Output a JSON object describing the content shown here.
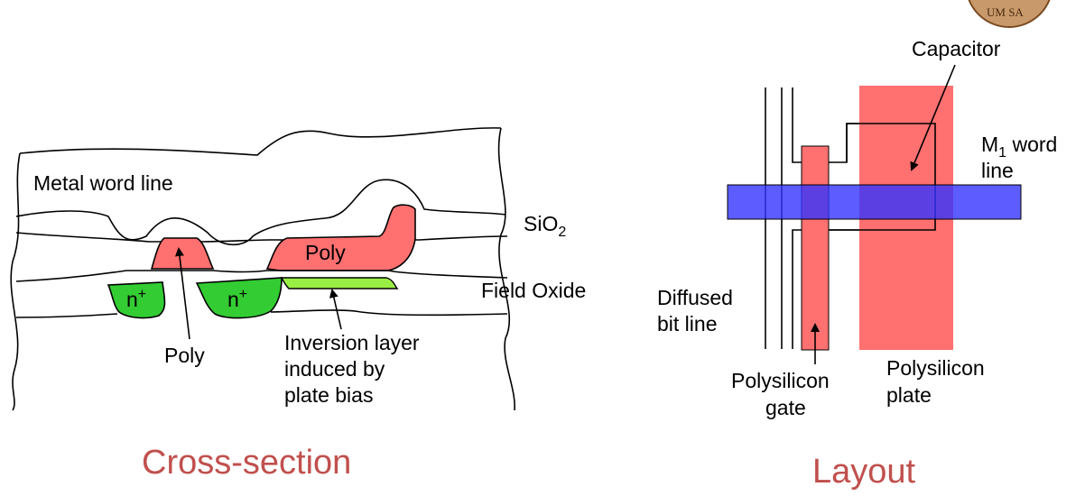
{
  "colors": {
    "poly": "#ff7070",
    "n_plus": "#33cc33",
    "inversion": "#99ee44",
    "metal_word_line": "#3333ff",
    "title": "#c0504d",
    "seal": "#c8996a"
  },
  "cross_section": {
    "title": "Cross-section",
    "labels": {
      "metal_word_line": "Metal word line",
      "sio2_main": "SiO",
      "sio2_sub": "2",
      "poly_right": "Poly",
      "poly_bottom": "Poly",
      "field_oxide": "Field Oxide",
      "n_plus_main": "n",
      "n_plus_sup": "+",
      "inversion_line1": "Inversion layer",
      "inversion_line2": "induced by",
      "inversion_line3": "plate bias"
    }
  },
  "layout": {
    "title": "Layout",
    "labels": {
      "capacitor": "Capacitor",
      "m1_main": "M",
      "m1_sub": "1",
      "m1_word": " word",
      "m1_line2": "line",
      "diffused_line1": "Diffused",
      "diffused_line2": "bit line",
      "poly_gate_line1": "Polysilicon",
      "poly_gate_line2": "gate",
      "poly_plate_line1": "Polysilicon",
      "poly_plate_line2": "plate"
    }
  },
  "seal_text": "UM SA"
}
